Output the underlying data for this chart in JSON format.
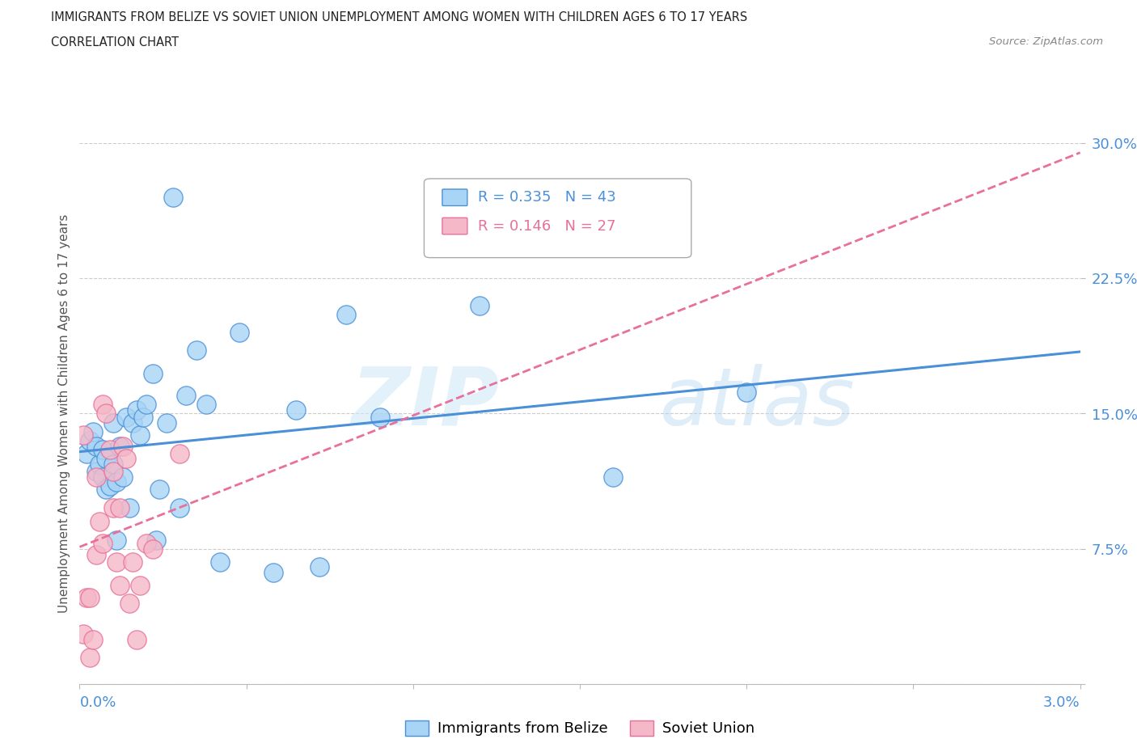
{
  "title": "IMMIGRANTS FROM BELIZE VS SOVIET UNION UNEMPLOYMENT AMONG WOMEN WITH CHILDREN AGES 6 TO 17 YEARS",
  "subtitle": "CORRELATION CHART",
  "source": "Source: ZipAtlas.com",
  "ylabel": "Unemployment Among Women with Children Ages 6 to 17 years",
  "yticks": [
    0.0,
    0.075,
    0.15,
    0.225,
    0.3
  ],
  "ytick_labels": [
    "",
    "7.5%",
    "15.0%",
    "22.5%",
    "30.0%"
  ],
  "xmin": 0.0,
  "xmax": 0.03,
  "ymin": 0.0,
  "ymax": 0.3,
  "watermark_line1": "ZIP",
  "watermark_line2": "atlas",
  "legend1_label": "Immigrants from Belize",
  "legend2_label": "Soviet Union",
  "r1": 0.335,
  "n1": 43,
  "r2": 0.146,
  "n2": 27,
  "color_belize": "#A8D4F5",
  "color_soviet": "#F5B8C8",
  "color_belize_line": "#4A90D9",
  "color_soviet_line": "#E8709A",
  "belize_x": [
    0.0002,
    0.0003,
    0.0004,
    0.0005,
    0.0005,
    0.0006,
    0.0007,
    0.0007,
    0.0008,
    0.0008,
    0.0009,
    0.001,
    0.001,
    0.0011,
    0.0011,
    0.0012,
    0.0013,
    0.0014,
    0.0015,
    0.0016,
    0.0017,
    0.0018,
    0.0019,
    0.002,
    0.0022,
    0.0023,
    0.0024,
    0.0026,
    0.0028,
    0.003,
    0.0032,
    0.0035,
    0.0038,
    0.0042,
    0.0048,
    0.0058,
    0.0065,
    0.0072,
    0.008,
    0.009,
    0.012,
    0.016,
    0.02
  ],
  "belize_y": [
    0.128,
    0.135,
    0.14,
    0.132,
    0.118,
    0.122,
    0.13,
    0.115,
    0.125,
    0.108,
    0.11,
    0.145,
    0.122,
    0.112,
    0.08,
    0.132,
    0.115,
    0.148,
    0.098,
    0.145,
    0.152,
    0.138,
    0.148,
    0.155,
    0.172,
    0.08,
    0.108,
    0.145,
    0.27,
    0.098,
    0.16,
    0.185,
    0.155,
    0.068,
    0.195,
    0.062,
    0.152,
    0.065,
    0.205,
    0.148,
    0.21,
    0.115,
    0.162
  ],
  "soviet_x": [
    0.0001,
    0.0001,
    0.0002,
    0.0003,
    0.0003,
    0.0004,
    0.0005,
    0.0005,
    0.0006,
    0.0007,
    0.0007,
    0.0008,
    0.0009,
    0.001,
    0.001,
    0.0011,
    0.0012,
    0.0012,
    0.0013,
    0.0014,
    0.0015,
    0.0016,
    0.0017,
    0.0018,
    0.002,
    0.0022,
    0.003
  ],
  "soviet_y": [
    0.138,
    0.028,
    0.048,
    0.015,
    0.048,
    0.025,
    0.072,
    0.115,
    0.09,
    0.155,
    0.078,
    0.15,
    0.13,
    0.098,
    0.118,
    0.068,
    0.098,
    0.055,
    0.132,
    0.125,
    0.045,
    0.068,
    0.025,
    0.055,
    0.078,
    0.075,
    0.128
  ]
}
